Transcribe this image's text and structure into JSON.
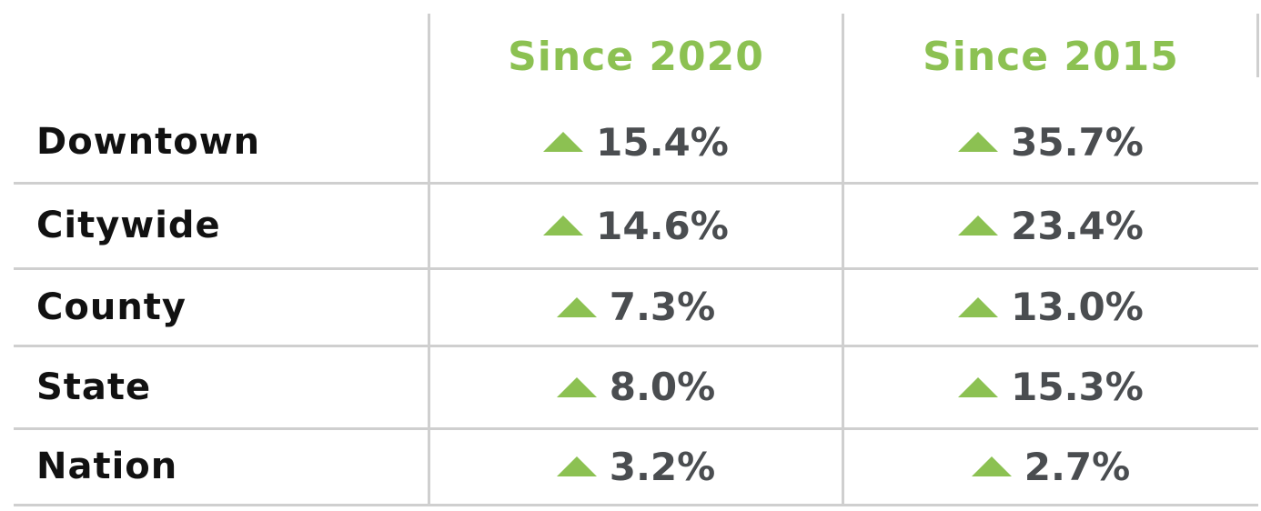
{
  "table": {
    "columns": [
      "Since 2020",
      "Since 2015"
    ],
    "rows": [
      {
        "label": "Downtown",
        "values": [
          "15.4%",
          "35.7%"
        ]
      },
      {
        "label": "Citywide",
        "values": [
          "14.6%",
          "23.4%"
        ]
      },
      {
        "label": "County",
        "values": [
          "7.3%",
          "13.0%"
        ]
      },
      {
        "label": "State",
        "values": [
          "8.0%",
          "15.3%"
        ]
      },
      {
        "label": "Nation",
        "values": [
          "3.2%",
          "2.7%"
        ]
      }
    ]
  }
}
